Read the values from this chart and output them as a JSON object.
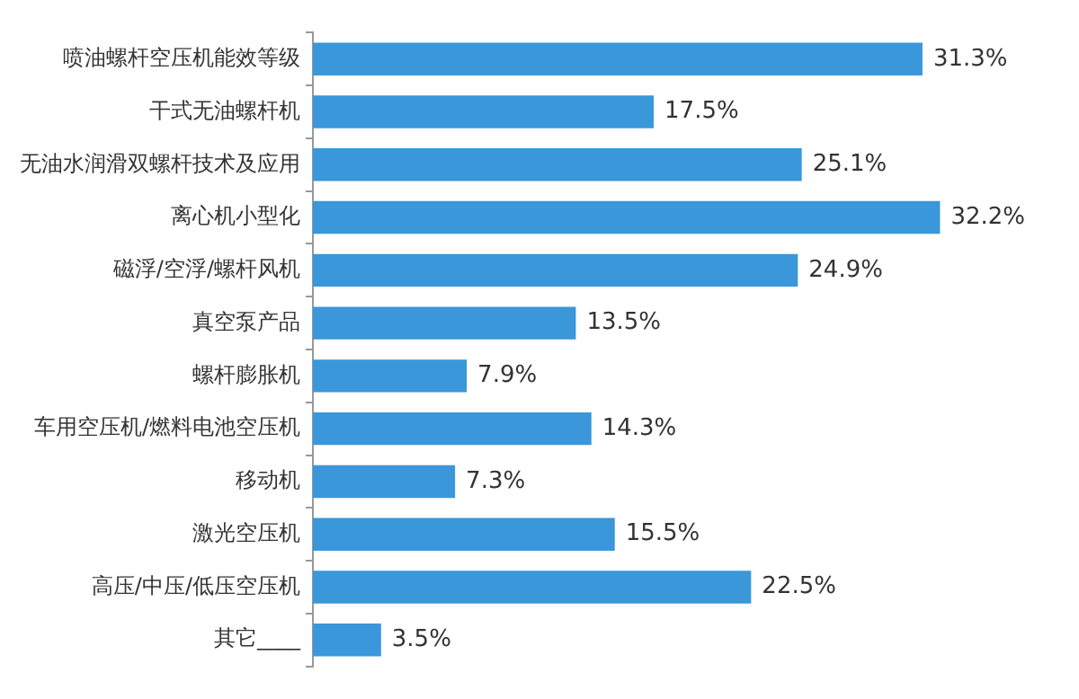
{
  "chart_data": {
    "type": "bar",
    "orientation": "horizontal",
    "categories": [
      "喷油螺杆空压机能效等级",
      "干式无油螺杆机",
      "无油水润滑双螺杆技术及应用",
      "离心机小型化",
      "磁浮/空浮/螺杆风机",
      "真空泵产品",
      "螺杆膨胀机",
      "车用空压机/燃料电池空压机",
      "移动机",
      "激光空压机",
      "高压/中压/低压空压机",
      "其它____"
    ],
    "values": [
      31.3,
      17.5,
      25.1,
      32.2,
      24.9,
      13.5,
      7.9,
      14.3,
      7.3,
      15.5,
      22.5,
      3.5
    ],
    "value_labels": [
      "31.3%",
      "17.5%",
      "25.1%",
      "32.2%",
      "24.9%",
      "13.5%",
      "7.9%",
      "14.3%",
      "7.3%",
      "15.5%",
      "22.5%",
      "3.5%"
    ],
    "color": "#3a97d9"
  }
}
